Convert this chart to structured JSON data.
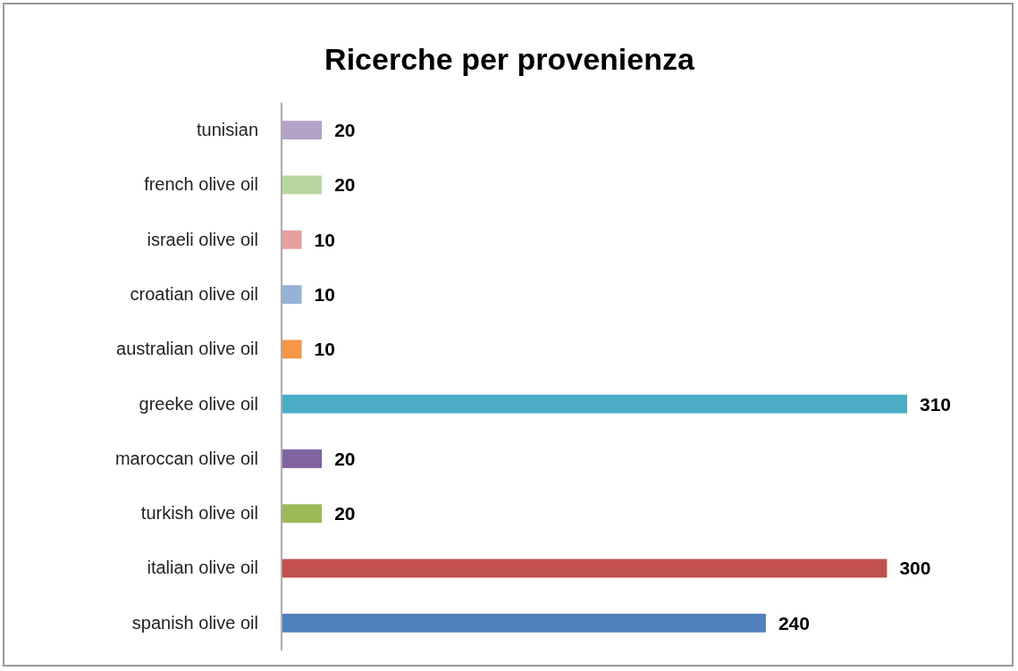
{
  "chart_data": {
    "type": "bar",
    "orientation": "horizontal",
    "title": "Ricerche per provenienza",
    "categories": [
      "tunisian",
      "french olive oil",
      "israeli olive oil",
      "croatian olive oil",
      "australian olive oil",
      "greeke olive oil",
      "maroccan olive oil",
      "turkish olive oil",
      "italian olive oil",
      "spanish olive oil"
    ],
    "values": [
      20,
      20,
      10,
      10,
      10,
      310,
      20,
      20,
      300,
      240
    ],
    "colors": [
      "#b3a2c7",
      "#b8d8a0",
      "#e6a0a0",
      "#95b3d7",
      "#f79646",
      "#4bacc6",
      "#8064a2",
      "#9bbb59",
      "#c0504d",
      "#4f81bd"
    ],
    "data_labels": true
  }
}
